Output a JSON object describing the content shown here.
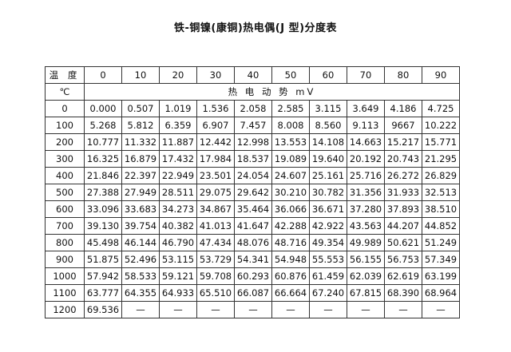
{
  "title": "铁-铜镍(康铜)热电偶(J 型)分度表",
  "table": {
    "corner_top": "温 度",
    "corner_bottom": "℃",
    "columns": [
      "0",
      "10",
      "20",
      "30",
      "40",
      "50",
      "60",
      "70",
      "80",
      "90"
    ],
    "emf_label": "热 电 动 势 mV",
    "rows": [
      {
        "temp": "0",
        "values": [
          "0.000",
          "0.507",
          "1.019",
          "1.536",
          "2.058",
          "2.585",
          "3.115",
          "3.649",
          "4.186",
          "4.725"
        ]
      },
      {
        "temp": "100",
        "values": [
          "5.268",
          "5.812",
          "6.359",
          "6.907",
          "7.457",
          "8.008",
          "8.560",
          "9.113",
          "9667",
          "10.222"
        ]
      },
      {
        "temp": "200",
        "values": [
          "10.777",
          "11.332",
          "11.887",
          "12.442",
          "12.998",
          "13.553",
          "14.108",
          "14.663",
          "15.217",
          "15.771"
        ]
      },
      {
        "temp": "300",
        "values": [
          "16.325",
          "16.879",
          "17.432",
          "17.984",
          "18.537",
          "19.089",
          "19.640",
          "20.192",
          "20.743",
          "21.295"
        ]
      },
      {
        "temp": "400",
        "values": [
          "21.846",
          "22.397",
          "22.949",
          "23.501",
          "24.054",
          "24.607",
          "25.161",
          "25.716",
          "26.272",
          "26.829"
        ]
      },
      {
        "temp": "500",
        "values": [
          "27.388",
          "27.949",
          "28.511",
          "29.075",
          "29.642",
          "30.210",
          "30.782",
          "31.356",
          "31.933",
          "32.513"
        ]
      },
      {
        "temp": "600",
        "values": [
          "33.096",
          "33.683",
          "34.273",
          "34.867",
          "35.464",
          "36.066",
          "36.671",
          "37.280",
          "37.893",
          "38.510"
        ]
      },
      {
        "temp": "700",
        "values": [
          "39.130",
          "39.754",
          "40.382",
          "41.013",
          "41.647",
          "42.288",
          "42.922",
          "43.563",
          "44.207",
          "44.852"
        ]
      },
      {
        "temp": "800",
        "values": [
          "45.498",
          "46.144",
          "46.790",
          "47.434",
          "48.076",
          "48.716",
          "49.354",
          "49.989",
          "50.621",
          "51.249"
        ]
      },
      {
        "temp": "900",
        "values": [
          "51.875",
          "52.496",
          "53.115",
          "53.729",
          "54.341",
          "54.948",
          "55.553",
          "56.155",
          "56.753",
          "57.349"
        ]
      },
      {
        "temp": "1000",
        "values": [
          "57.942",
          "58.533",
          "59.121",
          "59.708",
          "60.293",
          "60.876",
          "61.459",
          "62.039",
          "62.619",
          "63.199"
        ]
      },
      {
        "temp": "1100",
        "values": [
          "63.777",
          "64.355",
          "64.933",
          "65.510",
          "66.087",
          "66.664",
          "67.240",
          "67.815",
          "68.390",
          "68.964"
        ]
      },
      {
        "temp": "1200",
        "values": [
          "69.536",
          "—",
          "—",
          "—",
          "—",
          "—",
          "—",
          "—",
          "—",
          "—"
        ]
      }
    ]
  }
}
